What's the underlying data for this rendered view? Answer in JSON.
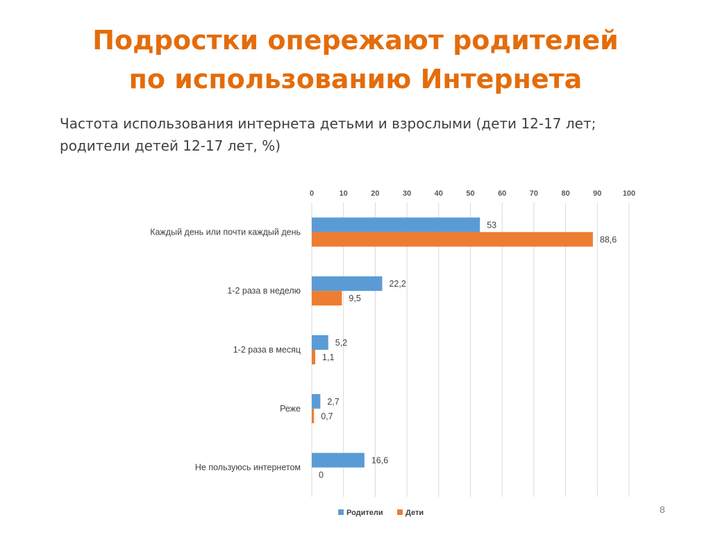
{
  "slide": {
    "title_line1": "Подростки опережают родителей",
    "title_line2": "по использованию Интернета",
    "subtitle_line1": "Частота использования интернета детьми и взрослыми (дети 12-17 лет;",
    "subtitle_line2": "родители детей 12-17 лет, %)",
    "page_number": "8"
  },
  "chart_data": {
    "type": "bar",
    "orientation": "horizontal",
    "categories": [
      "Каждый день или почти каждый день",
      "1-2 раза в неделю",
      "1-2 раза в месяц",
      "Реже",
      "Не пользуюсь интернетом"
    ],
    "series": [
      {
        "name": "Родители",
        "color": "#5b9bd5",
        "values": [
          53,
          22.2,
          5.2,
          2.7,
          16.6
        ],
        "labels": [
          "53",
          "22,2",
          "5,2",
          "2,7",
          "16,6"
        ]
      },
      {
        "name": "Дети",
        "color": "#ed7d31",
        "values": [
          88.6,
          9.5,
          1.1,
          0.7,
          0
        ],
        "labels": [
          "88,6",
          "9,5",
          "1,1",
          "0,7",
          "0"
        ]
      }
    ],
    "xlim": [
      0,
      100
    ],
    "x_ticks": [
      "0",
      "10",
      "20",
      "30",
      "40",
      "50",
      "60",
      "70",
      "80",
      "90",
      "100"
    ],
    "x_axis_position": "top",
    "grid": true,
    "legend": "bottom"
  }
}
